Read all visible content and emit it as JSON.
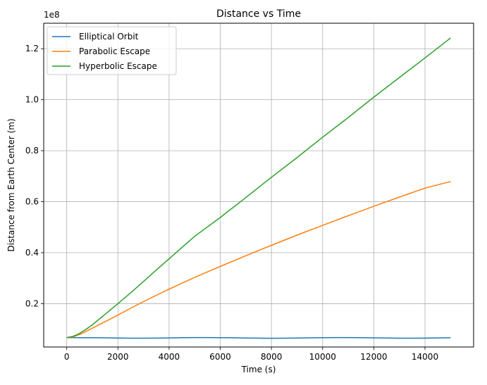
{
  "chart_data": {
    "type": "line",
    "title": "Distance vs Time",
    "xlabel": "Time (s)",
    "ylabel": "Distance from Earth Center (m)",
    "y_offset_label": "1e8",
    "xlim": [
      -900,
      15900
    ],
    "ylim": [
      0.03,
      1.3
    ],
    "y_scale_factor": 100000000,
    "x_ticks": [
      0,
      2000,
      4000,
      6000,
      8000,
      10000,
      12000,
      14000
    ],
    "x_tick_labels": [
      "0",
      "2000",
      "4000",
      "6000",
      "8000",
      "10000",
      "12000",
      "14000"
    ],
    "y_ticks": [
      0.2,
      0.4,
      0.6,
      0.8,
      1.0,
      1.2
    ],
    "y_tick_labels": [
      "0.2",
      "0.4",
      "0.6",
      "0.8",
      "1.0",
      "1.2"
    ],
    "grid": true,
    "legend_position": "upper-left",
    "series": [
      {
        "name": "Elliptical Orbit",
        "color": "#1f77b4",
        "x": [
          0,
          500,
          1000,
          1500,
          2000,
          2500,
          3000,
          3500,
          4000,
          4500,
          5000,
          5500,
          6000,
          6500,
          7000,
          7500,
          8000,
          8500,
          9000,
          9500,
          10000,
          10500,
          11000,
          11500,
          12000,
          12500,
          13000,
          13500,
          14000,
          14500,
          15000
        ],
        "y": [
          0.067,
          0.0668,
          0.0664,
          0.0658,
          0.0651,
          0.0645,
          0.0644,
          0.0648,
          0.0656,
          0.0664,
          0.0669,
          0.067,
          0.0667,
          0.0661,
          0.0654,
          0.0647,
          0.0643,
          0.0645,
          0.0651,
          0.0659,
          0.0666,
          0.067,
          0.0669,
          0.0665,
          0.0658,
          0.0651,
          0.0645,
          0.0644,
          0.0649,
          0.0657,
          0.0665
        ]
      },
      {
        "name": "Parabolic Escape",
        "color": "#ff7f0e",
        "x": [
          0,
          250,
          500,
          750,
          1000,
          1500,
          2000,
          2500,
          3000,
          3500,
          4000,
          5000,
          6000,
          7000,
          8000,
          9000,
          10000,
          11000,
          12000,
          13000,
          14000,
          15000
        ],
        "y": [
          0.067,
          0.07,
          0.079,
          0.091,
          0.104,
          0.129,
          0.155,
          0.182,
          0.208,
          0.233,
          0.257,
          0.303,
          0.346,
          0.388,
          0.429,
          0.469,
          0.507,
          0.545,
          0.582,
          0.618,
          0.653,
          0.679
        ]
      },
      {
        "name": "Hyperbolic Escape",
        "color": "#2ca02c",
        "x": [
          0,
          250,
          500,
          750,
          1000,
          1500,
          2000,
          2500,
          3000,
          3500,
          4000,
          5000,
          6000,
          7000,
          8000,
          9000,
          10000,
          11000,
          12000,
          13000,
          14000,
          15000
        ],
        "y": [
          0.067,
          0.072,
          0.083,
          0.099,
          0.117,
          0.158,
          0.2,
          0.243,
          0.287,
          0.332,
          0.376,
          0.464,
          0.538,
          0.616,
          0.696,
          0.773,
          0.853,
          0.93,
          1.01,
          1.087,
          1.164,
          1.242
        ]
      }
    ]
  }
}
